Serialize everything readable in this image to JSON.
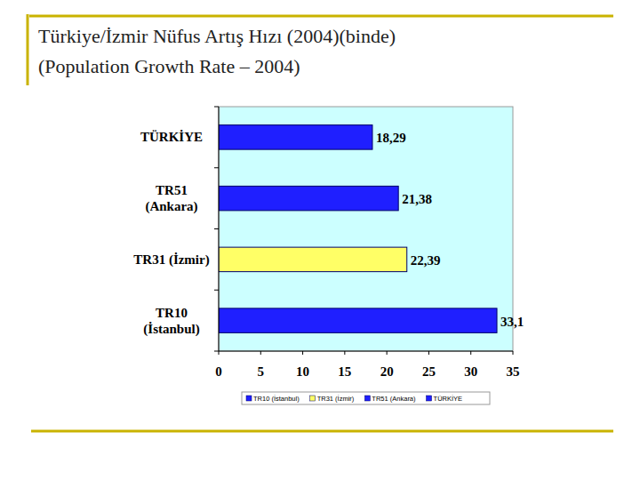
{
  "chart_data": {
    "type": "bar",
    "title": "Türkiye/İzmir Nüfus Artış Hızı (2004)(binde)",
    "subtitle": "(Population Growth Rate – 2004)",
    "orientation": "horizontal",
    "categories": [
      "TR10\n(İstanbul)",
      "TR31 (İzmir)",
      "TR51\n(Ankara)",
      "TÜRKİYE"
    ],
    "values": [
      33.1,
      22.39,
      21.38,
      18.29
    ],
    "value_labels": [
      "33,1",
      "22,39",
      "21,38",
      "18,29"
    ],
    "colors": [
      "#1f1fff",
      "#ffff66",
      "#1f1fff",
      "#1f1fff"
    ],
    "xlim": [
      0,
      35
    ],
    "xticks": [
      0,
      5,
      10,
      15,
      20,
      25,
      30,
      35
    ],
    "data_labels": true,
    "legend": "bottom",
    "grid": false
  }
}
